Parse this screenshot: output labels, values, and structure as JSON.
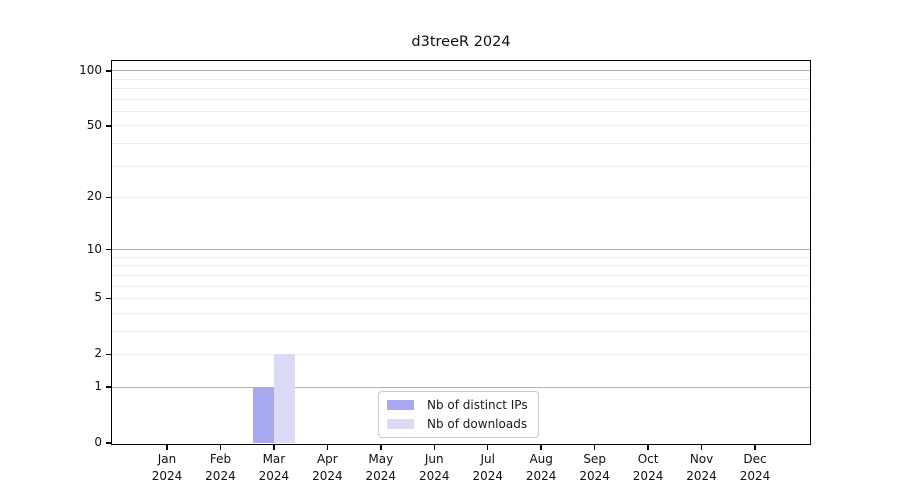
{
  "chart_data": {
    "type": "bar",
    "title": "d3treeR 2024",
    "year": "2024",
    "months": [
      "Jan",
      "Feb",
      "Mar",
      "Apr",
      "May",
      "Jun",
      "Jul",
      "Aug",
      "Sep",
      "Oct",
      "Nov",
      "Dec"
    ],
    "series": [
      {
        "name": "Nb of distinct IPs",
        "color": "#a9a9ef",
        "values": [
          0,
          0,
          1,
          0,
          0,
          0,
          0,
          0,
          0,
          0,
          0,
          0
        ]
      },
      {
        "name": "Nb of downloads",
        "color": "#dbdbf8",
        "values": [
          0,
          0,
          2,
          0,
          0,
          0,
          0,
          0,
          0,
          0,
          0,
          0
        ]
      }
    ],
    "y_axis": {
      "scale": "log10(1+x)",
      "tick_values": [
        0,
        1,
        2,
        5,
        10,
        20,
        50,
        100
      ],
      "major_gridlines": [
        1,
        10,
        100
      ],
      "minor_gridlines": [
        2,
        3,
        4,
        5,
        6,
        7,
        8,
        9,
        20,
        30,
        40,
        50,
        60,
        70,
        80,
        90
      ],
      "max_value": 113
    },
    "legend": {
      "position": "lower center",
      "items": [
        "Nb of distinct IPs",
        "Nb of downloads"
      ]
    },
    "colors": {
      "major_grid": "#b2b2b2",
      "minor_grid": "#ececec",
      "axis": "#000000",
      "background": "#ffffff"
    }
  }
}
